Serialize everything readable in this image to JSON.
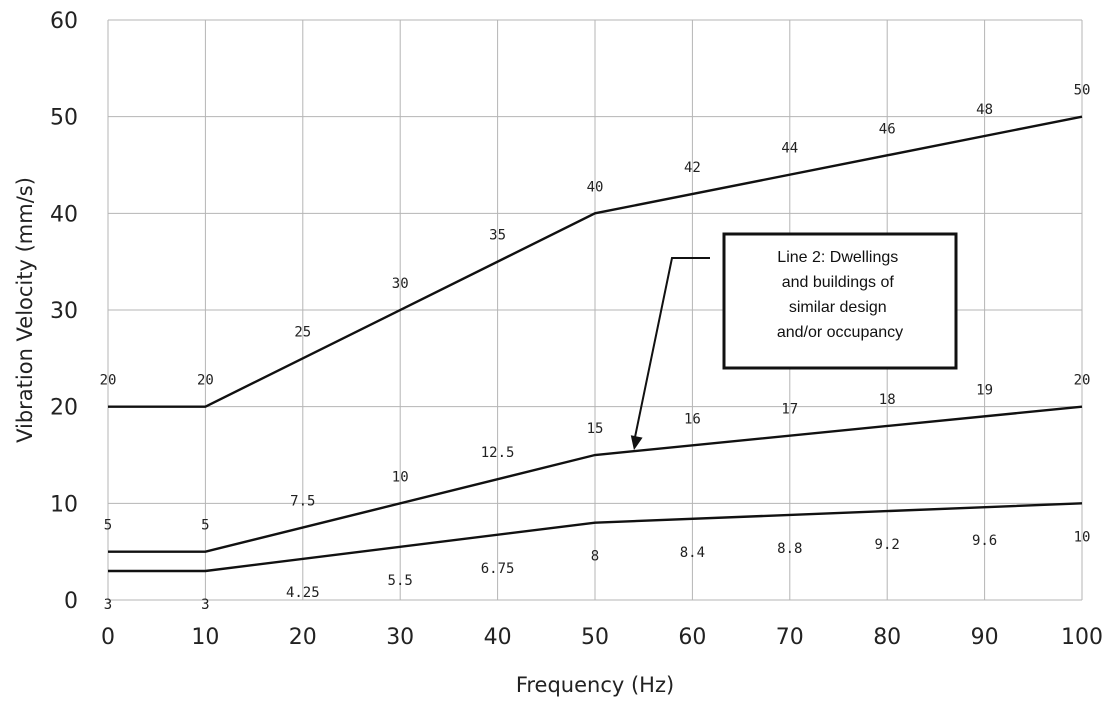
{
  "chart_data": {
    "type": "line",
    "xlabel": "Frequency (Hz)",
    "ylabel": "Vibration Velocity (mm/s)",
    "xlim": [
      0,
      100
    ],
    "ylim": [
      0,
      60
    ],
    "xticks": [
      0,
      10,
      20,
      30,
      40,
      50,
      60,
      70,
      80,
      90,
      100
    ],
    "yticks": [
      0,
      10,
      20,
      30,
      40,
      50,
      60
    ],
    "grid": true,
    "line_color": "#111111",
    "series": [
      {
        "x": [
          0,
          10,
          50,
          100
        ],
        "values": [
          20,
          20,
          40,
          50
        ],
        "point_labels": [
          {
            "x": 0,
            "text": "20"
          },
          {
            "x": 10,
            "text": "20"
          },
          {
            "x": 20,
            "text": "25"
          },
          {
            "x": 30,
            "text": "30"
          },
          {
            "x": 40,
            "text": "35"
          },
          {
            "x": 50,
            "text": "40"
          },
          {
            "x": 60,
            "text": "42"
          },
          {
            "x": 70,
            "text": "44"
          },
          {
            "x": 80,
            "text": "46"
          },
          {
            "x": 90,
            "text": "48"
          },
          {
            "x": 100,
            "text": "50"
          }
        ]
      },
      {
        "x": [
          0,
          10,
          50,
          100
        ],
        "values": [
          5,
          5,
          15,
          20
        ],
        "point_labels": [
          {
            "x": 0,
            "text": "5"
          },
          {
            "x": 10,
            "text": "5"
          },
          {
            "x": 20,
            "text": "7.5"
          },
          {
            "x": 30,
            "text": "10"
          },
          {
            "x": 40,
            "text": "12.5"
          },
          {
            "x": 50,
            "text": "15"
          },
          {
            "x": 60,
            "text": "16"
          },
          {
            "x": 70,
            "text": "17"
          },
          {
            "x": 80,
            "text": "18"
          },
          {
            "x": 90,
            "text": "19"
          },
          {
            "x": 100,
            "text": "20"
          }
        ]
      },
      {
        "x": [
          0,
          10,
          50,
          100
        ],
        "values": [
          3,
          3,
          8,
          10
        ],
        "point_labels": [
          {
            "x": 0,
            "text": "3"
          },
          {
            "x": 10,
            "text": "3"
          },
          {
            "x": 20,
            "text": "4.25"
          },
          {
            "x": 30,
            "text": "5.5"
          },
          {
            "x": 40,
            "text": "6.75"
          },
          {
            "x": 50,
            "text": "8"
          },
          {
            "x": 60,
            "text": "8.4"
          },
          {
            "x": 70,
            "text": "8.8"
          },
          {
            "x": 80,
            "text": "9.2"
          },
          {
            "x": 90,
            "text": "9.6"
          },
          {
            "x": 100,
            "text": "10"
          }
        ]
      }
    ],
    "annotations": [
      {
        "text": "Line 2: Dwellings and buildings of similar design and/or occupancy",
        "lines": [
          "Line 2: Dwellings",
          "and buildings of",
          "similar design",
          "and/or occupancy"
        ],
        "arrow_target": {
          "x": 54,
          "y": 15.5
        }
      }
    ]
  }
}
